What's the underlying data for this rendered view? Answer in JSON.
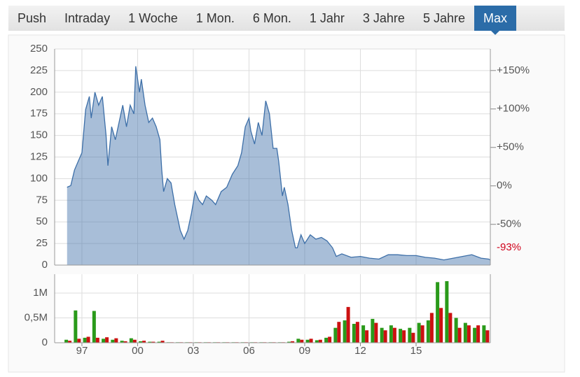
{
  "tabs": {
    "items": [
      "Push",
      "Intraday",
      "1 Woche",
      "1 Mon.",
      "6 Mon.",
      "1 Jahr",
      "3 Jahre",
      "5 Jahre",
      "Max"
    ],
    "active": 8
  },
  "chart_data": [
    {
      "type": "area",
      "x": [
        1996.2,
        1996.4,
        1996.6,
        1996.8,
        1997.0,
        1997.2,
        1997.4,
        1997.5,
        1997.7,
        1997.9,
        1998.1,
        1998.3,
        1998.4,
        1998.6,
        1998.8,
        1999.0,
        1999.2,
        1999.4,
        1999.6,
        1999.8,
        1999.9,
        2000.1,
        2000.2,
        2000.4,
        2000.6,
        2000.8,
        2001.0,
        2001.2,
        2001.3,
        2001.4,
        2001.6,
        2001.8,
        2002.0,
        2002.3,
        2002.5,
        2002.7,
        2002.9,
        2003.1,
        2003.3,
        2003.5,
        2003.7,
        2004.0,
        2004.2,
        2004.5,
        2004.8,
        2005.1,
        2005.4,
        2005.6,
        2005.8,
        2006.0,
        2006.1,
        2006.3,
        2006.5,
        2006.7,
        2006.9,
        2007.1,
        2007.3,
        2007.5,
        2007.6,
        2007.8,
        2007.9,
        2008.1,
        2008.3,
        2008.5,
        2008.6,
        2008.8,
        2009.0,
        2009.3,
        2009.6,
        2009.9,
        2010.2,
        2010.5,
        2010.7,
        2011.0,
        2011.5,
        2012.0,
        2012.5,
        2013.0,
        2013.5,
        2014.0,
        2014.5,
        2015.0,
        2015.5,
        2016.0,
        2016.5,
        2017.0,
        2017.5,
        2018.0,
        2018.5,
        2018.9,
        2019.0
      ],
      "series": [
        {
          "color": "#3d6fa8",
          "values": [
            90,
            92,
            110,
            120,
            130,
            180,
            195,
            170,
            200,
            185,
            195,
            150,
            115,
            160,
            145,
            165,
            185,
            160,
            185,
            175,
            230,
            200,
            215,
            185,
            165,
            170,
            160,
            145,
            110,
            85,
            100,
            95,
            70,
            40,
            30,
            40,
            60,
            85,
            75,
            70,
            80,
            75,
            70,
            85,
            90,
            105,
            115,
            130,
            160,
            170,
            155,
            140,
            165,
            150,
            190,
            175,
            135,
            135,
            120,
            80,
            90,
            70,
            40,
            20,
            20,
            35,
            25,
            35,
            30,
            32,
            28,
            20,
            10,
            13,
            9,
            10,
            8,
            7,
            12,
            12,
            11,
            11,
            9,
            8,
            6,
            8,
            10,
            12,
            8,
            7,
            6
          ]
        }
      ],
      "xlim": [
        1995.53,
        2019.0
      ],
      "ylim": [
        0,
        250
      ],
      "yticks": [
        0,
        25,
        50,
        75,
        100,
        125,
        150,
        175,
        200,
        225,
        250
      ],
      "y2lim": [
        -103,
        178
      ],
      "y2ticks": [
        {
          "value": 150,
          "label": "+150%"
        },
        {
          "value": 100,
          "label": "+100%"
        },
        {
          "value": 50,
          "label": "+50%"
        },
        {
          "value": 0,
          "label": "0%"
        },
        {
          "value": -50,
          "label": "-50%"
        }
      ],
      "last_change": {
        "value": -93,
        "label": "-93%",
        "color": "#d0021b"
      },
      "grid": true
    },
    {
      "type": "bar",
      "x": [
        1996.25,
        1996.75,
        1997.25,
        1997.75,
        1998.25,
        1998.75,
        1999.25,
        1999.75,
        2000.25,
        2000.75,
        2001.25,
        2001.75,
        2002.25,
        2002.75,
        2003.25,
        2003.75,
        2004.25,
        2004.75,
        2005.25,
        2005.75,
        2006.25,
        2006.75,
        2007.25,
        2007.75,
        2008.25,
        2008.75,
        2009.25,
        2009.75,
        2010.25,
        2010.75,
        2011.25,
        2011.75,
        2012.25,
        2012.75,
        2013.25,
        2013.75,
        2014.25,
        2014.75,
        2015.25,
        2015.75,
        2016.25,
        2016.75,
        2017.25,
        2017.75,
        2018.25,
        2018.75
      ],
      "series": [
        {
          "color": "#2a9a1a",
          "values": [
            60000,
            650000,
            100000,
            640000,
            80000,
            60000,
            40000,
            90000,
            30000,
            20000,
            20000,
            10000,
            10000,
            10000,
            10000,
            10000,
            10000,
            10000,
            10000,
            10000,
            10000,
            10000,
            10000,
            10000,
            20000,
            80000,
            60000,
            50000,
            100000,
            300000,
            450000,
            380000,
            350000,
            480000,
            300000,
            350000,
            280000,
            300000,
            400000,
            450000,
            1220000,
            1240000,
            500000,
            400000,
            300000,
            350000
          ]
        },
        {
          "color": "#cc1111",
          "values": [
            40000,
            80000,
            120000,
            100000,
            110000,
            90000,
            30000,
            60000,
            40000,
            20000,
            40000,
            10000,
            10000,
            10000,
            10000,
            10000,
            10000,
            10000,
            10000,
            10000,
            10000,
            10000,
            10000,
            10000,
            30000,
            60000,
            80000,
            60000,
            120000,
            420000,
            720000,
            420000,
            250000,
            400000,
            250000,
            300000,
            250000,
            200000,
            350000,
            600000,
            700000,
            600000,
            300000,
            350000,
            350000,
            250000
          ]
        }
      ],
      "xlim": [
        1995.53,
        2019.0
      ],
      "xticks": [
        {
          "value": 1997,
          "label": "97"
        },
        {
          "value": 2000,
          "label": "00"
        },
        {
          "value": 2003,
          "label": "03"
        },
        {
          "value": 2006,
          "label": "06"
        },
        {
          "value": 2009,
          "label": "09"
        },
        {
          "value": 2012,
          "label": "12"
        },
        {
          "value": 2015,
          "label": "15"
        }
      ],
      "ylim": [
        0,
        1380000
      ],
      "yticks": [
        0,
        {
          "value": 500000,
          "label": "0,5M"
        },
        {
          "value": 1000000,
          "label": "1M"
        }
      ],
      "grid": true
    }
  ]
}
